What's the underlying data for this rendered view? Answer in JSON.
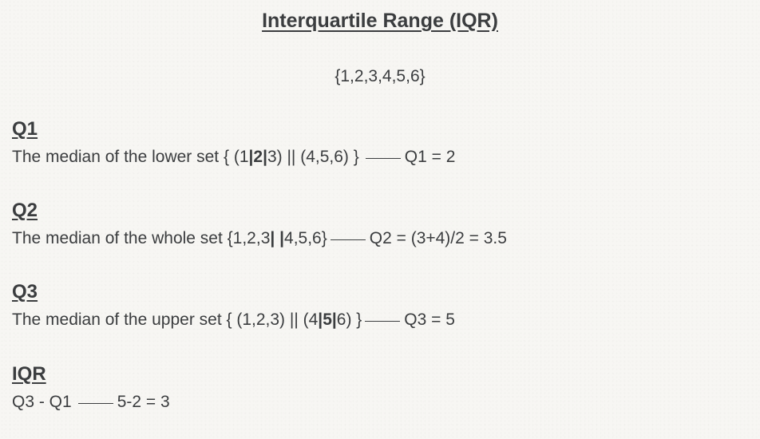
{
  "title": "Interquartile Range (IQR)",
  "set": "{1,2,3,4,5,6}",
  "sections": {
    "q1": {
      "heading": "Q1",
      "text_a": "The median of the lower set { (1",
      "sep1": "|",
      "bold": "2",
      "sep2": "|",
      "text_b": "3) || (4,5,6) }",
      "result": "Q1 = 2"
    },
    "q2": {
      "heading": "Q2",
      "text_a": "The median of the whole set {1,2,3",
      "sep1": "|",
      "mid": " ",
      "sep2": "|",
      "text_b": "4,5,6}",
      "result": "Q2 = (3+4)/2 = 3.5"
    },
    "q3": {
      "heading": "Q3",
      "text_a": "The median of the upper set { (1,2,3) || (4",
      "sep1": "|",
      "bold": "5",
      "sep2": "|",
      "text_b": "6) }",
      "result": "Q3 = 5"
    },
    "iqr": {
      "heading": "IQR",
      "text_a": "Q3 - Q1",
      "result": "5-2 = 3"
    }
  }
}
